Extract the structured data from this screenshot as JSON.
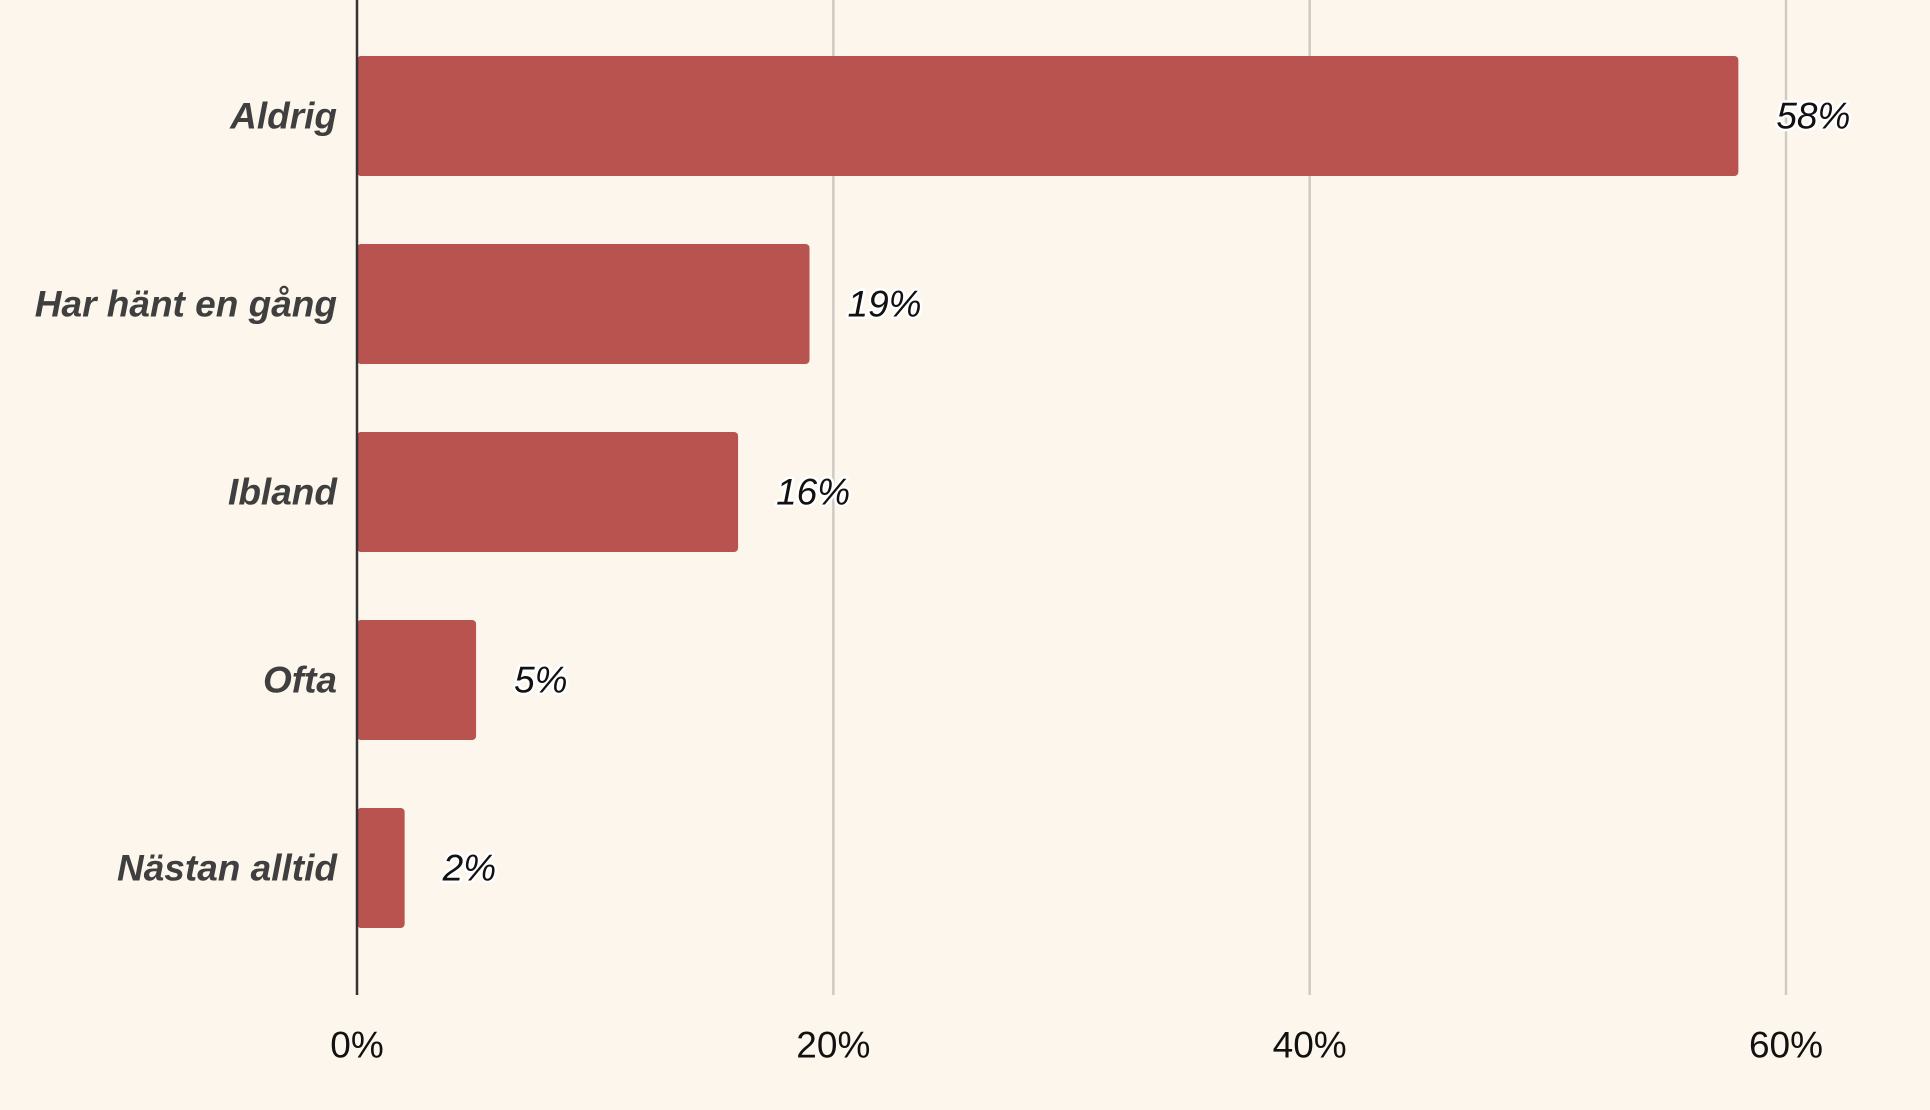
{
  "chart_data": {
    "type": "bar",
    "orientation": "horizontal",
    "title": "",
    "xlabel": "",
    "ylabel": "",
    "categories": [
      "Aldrig",
      "Har hänt en gång",
      "Ibland",
      "Ofta",
      "Nästan alltid"
    ],
    "values": [
      58,
      19,
      16,
      5,
      2
    ],
    "value_labels": [
      "58%",
      "19%",
      "16%",
      "5%",
      "2%"
    ],
    "xlim": [
      0,
      60
    ],
    "x_ticks": [
      0,
      20,
      40,
      60
    ],
    "x_tick_labels": [
      "0%",
      "20%",
      "40%",
      "60%"
    ],
    "grid": "vertical",
    "legend": "none",
    "bar_color": "#b85350",
    "background_color": "#fdf6ec"
  }
}
